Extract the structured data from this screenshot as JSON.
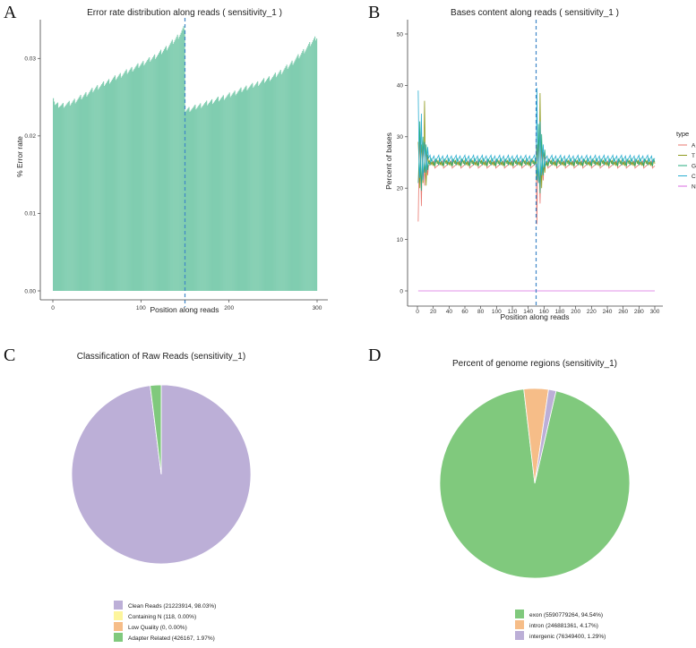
{
  "chart_data": [
    {
      "panel": "A",
      "type": "bar",
      "title": "Error rate distribution along reads ( sensitivity_1 )",
      "xlabel": "Position along reads",
      "ylabel": "% Error rate",
      "xlim": [
        0,
        300
      ],
      "ylim": [
        0,
        0.035
      ],
      "xticks": [
        "0",
        "100",
        "200",
        "300"
      ],
      "yticks": [
        "0.00",
        "0.01",
        "0.02",
        "0.03"
      ],
      "ytick_values": [
        0,
        0.01,
        0.02,
        0.03
      ],
      "xtick_values": [
        0,
        100,
        200,
        300
      ],
      "vline": 150,
      "color": "#80cdb0",
      "vline_color": "#3f87c7",
      "profile": [
        {
          "x": 1,
          "y": 0.0251
        },
        {
          "x": 3,
          "y": 0.024
        },
        {
          "x": 10,
          "y": 0.0239
        },
        {
          "x": 20,
          "y": 0.0242
        },
        {
          "x": 30,
          "y": 0.0248
        },
        {
          "x": 40,
          "y": 0.0255
        },
        {
          "x": 50,
          "y": 0.0262
        },
        {
          "x": 60,
          "y": 0.0268
        },
        {
          "x": 70,
          "y": 0.0274
        },
        {
          "x": 80,
          "y": 0.028
        },
        {
          "x": 90,
          "y": 0.0286
        },
        {
          "x": 100,
          "y": 0.0292
        },
        {
          "x": 110,
          "y": 0.0298
        },
        {
          "x": 120,
          "y": 0.0305
        },
        {
          "x": 130,
          "y": 0.0314
        },
        {
          "x": 140,
          "y": 0.0325
        },
        {
          "x": 146,
          "y": 0.0333
        },
        {
          "x": 150,
          "y": 0.034
        },
        {
          "x": 151,
          "y": 0.0233
        },
        {
          "x": 160,
          "y": 0.0236
        },
        {
          "x": 170,
          "y": 0.024
        },
        {
          "x": 180,
          "y": 0.0244
        },
        {
          "x": 190,
          "y": 0.0248
        },
        {
          "x": 200,
          "y": 0.0252
        },
        {
          "x": 210,
          "y": 0.0257
        },
        {
          "x": 220,
          "y": 0.0262
        },
        {
          "x": 230,
          "y": 0.0266
        },
        {
          "x": 240,
          "y": 0.0271
        },
        {
          "x": 250,
          "y": 0.0276
        },
        {
          "x": 260,
          "y": 0.0283
        },
        {
          "x": 270,
          "y": 0.0292
        },
        {
          "x": 280,
          "y": 0.0303
        },
        {
          "x": 290,
          "y": 0.0315
        },
        {
          "x": 300,
          "y": 0.0328
        }
      ]
    },
    {
      "panel": "B",
      "type": "line",
      "title": "Bases content along reads ( sensitivity_1 )",
      "xlabel": "Position along reads",
      "ylabel": "Percent of bases",
      "xlim": [
        0,
        300
      ],
      "ylim": [
        0,
        50
      ],
      "xticks": [
        "0",
        "20",
        "40",
        "60",
        "80",
        "100",
        "120",
        "140",
        "160",
        "180",
        "200",
        "220",
        "240",
        "260",
        "280",
        "300"
      ],
      "xtick_values": [
        0,
        20,
        40,
        60,
        80,
        100,
        120,
        140,
        160,
        180,
        200,
        220,
        240,
        260,
        280,
        300
      ],
      "yticks": [
        "0",
        "10",
        "20",
        "30",
        "40",
        "50"
      ],
      "ytick_values": [
        0,
        10,
        20,
        30,
        40,
        50
      ],
      "vline": 150,
      "vline_color": "#3f87c7",
      "legend_title": "type",
      "series": [
        {
          "name": "A",
          "color": "#e8776f",
          "baseline": 24.6,
          "spikes": [
            {
              "x": 1,
              "y": 13.5
            },
            {
              "x": 3,
              "y": 30.0
            },
            {
              "x": 5,
              "y": 16.5
            },
            {
              "x": 7,
              "y": 28.0
            },
            {
              "x": 9,
              "y": 20.5
            },
            {
              "x": 11,
              "y": 27.5
            },
            {
              "x": 13,
              "y": 22.5
            },
            {
              "x": 151,
              "y": 13.0
            },
            {
              "x": 153,
              "y": 29.5
            },
            {
              "x": 155,
              "y": 17.0
            },
            {
              "x": 157,
              "y": 28.0
            },
            {
              "x": 159,
              "y": 21.5
            },
            {
              "x": 161,
              "y": 26.5
            }
          ]
        },
        {
          "name": "T",
          "color": "#8f9a1f",
          "baseline": 24.9,
          "spikes": [
            {
              "x": 1,
              "y": 29.0
            },
            {
              "x": 3,
              "y": 20.0
            },
            {
              "x": 5,
              "y": 28.5
            },
            {
              "x": 7,
              "y": 21.0
            },
            {
              "x": 9,
              "y": 37.0
            },
            {
              "x": 11,
              "y": 20.5
            },
            {
              "x": 13,
              "y": 26.5
            },
            {
              "x": 151,
              "y": 28.5
            },
            {
              "x": 153,
              "y": 21.0
            },
            {
              "x": 155,
              "y": 38.5
            },
            {
              "x": 157,
              "y": 20.0
            },
            {
              "x": 159,
              "y": 27.0
            },
            {
              "x": 161,
              "y": 23.0
            }
          ]
        },
        {
          "name": "G",
          "color": "#27ad7f",
          "baseline": 25.1,
          "spikes": [
            {
              "x": 1,
              "y": 21.0
            },
            {
              "x": 3,
              "y": 33.0
            },
            {
              "x": 5,
              "y": 19.5
            },
            {
              "x": 7,
              "y": 30.0
            },
            {
              "x": 9,
              "y": 23.0
            },
            {
              "x": 11,
              "y": 28.5
            },
            {
              "x": 13,
              "y": 23.5
            },
            {
              "x": 151,
              "y": 21.5
            },
            {
              "x": 153,
              "y": 32.5
            },
            {
              "x": 155,
              "y": 19.0
            },
            {
              "x": 157,
              "y": 30.5
            },
            {
              "x": 159,
              "y": 22.5
            },
            {
              "x": 161,
              "y": 27.5
            }
          ]
        },
        {
          "name": "C",
          "color": "#2aaed1",
          "baseline": 25.7,
          "spikes": [
            {
              "x": 1,
              "y": 39.0
            },
            {
              "x": 3,
              "y": 22.0
            },
            {
              "x": 5,
              "y": 34.5
            },
            {
              "x": 7,
              "y": 21.5
            },
            {
              "x": 9,
              "y": 29.0
            },
            {
              "x": 11,
              "y": 23.0
            },
            {
              "x": 13,
              "y": 28.0
            },
            {
              "x": 151,
              "y": 39.5
            },
            {
              "x": 153,
              "y": 21.0
            },
            {
              "x": 155,
              "y": 33.0
            },
            {
              "x": 157,
              "y": 22.5
            },
            {
              "x": 159,
              "y": 28.5
            },
            {
              "x": 161,
              "y": 24.0
            }
          ]
        },
        {
          "name": "N",
          "color": "#d96be0",
          "baseline": 0,
          "spikes": []
        }
      ]
    },
    {
      "panel": "C",
      "type": "pie",
      "title": "Classification of Raw Reads (sensitivity_1)",
      "slices": [
        {
          "label": "Clean Reads (21223914, 98.03%)",
          "value": 98.03,
          "color": "#bcafd7"
        },
        {
          "label": "Containing N (118, 0.00%)",
          "value": 0.0005,
          "color": "#fdf59c"
        },
        {
          "label": "Low Quality (0, 0.00%)",
          "value": 0,
          "color": "#f6bd88"
        },
        {
          "label": "Adapter Related (426167, 1.97%)",
          "value": 1.97,
          "color": "#80c97d"
        }
      ]
    },
    {
      "panel": "D",
      "type": "pie",
      "title": "Percent of genome regions (sensitivity_1)",
      "slices": [
        {
          "label": "exon (5590779264, 94.54%)",
          "value": 94.54,
          "color": "#80c97d"
        },
        {
          "label": "intron (246881361, 4.17%)",
          "value": 4.17,
          "color": "#f6bd88"
        },
        {
          "label": "intergenic (76349400, 1.29%)",
          "value": 1.29,
          "color": "#bcafd7"
        }
      ]
    }
  ]
}
